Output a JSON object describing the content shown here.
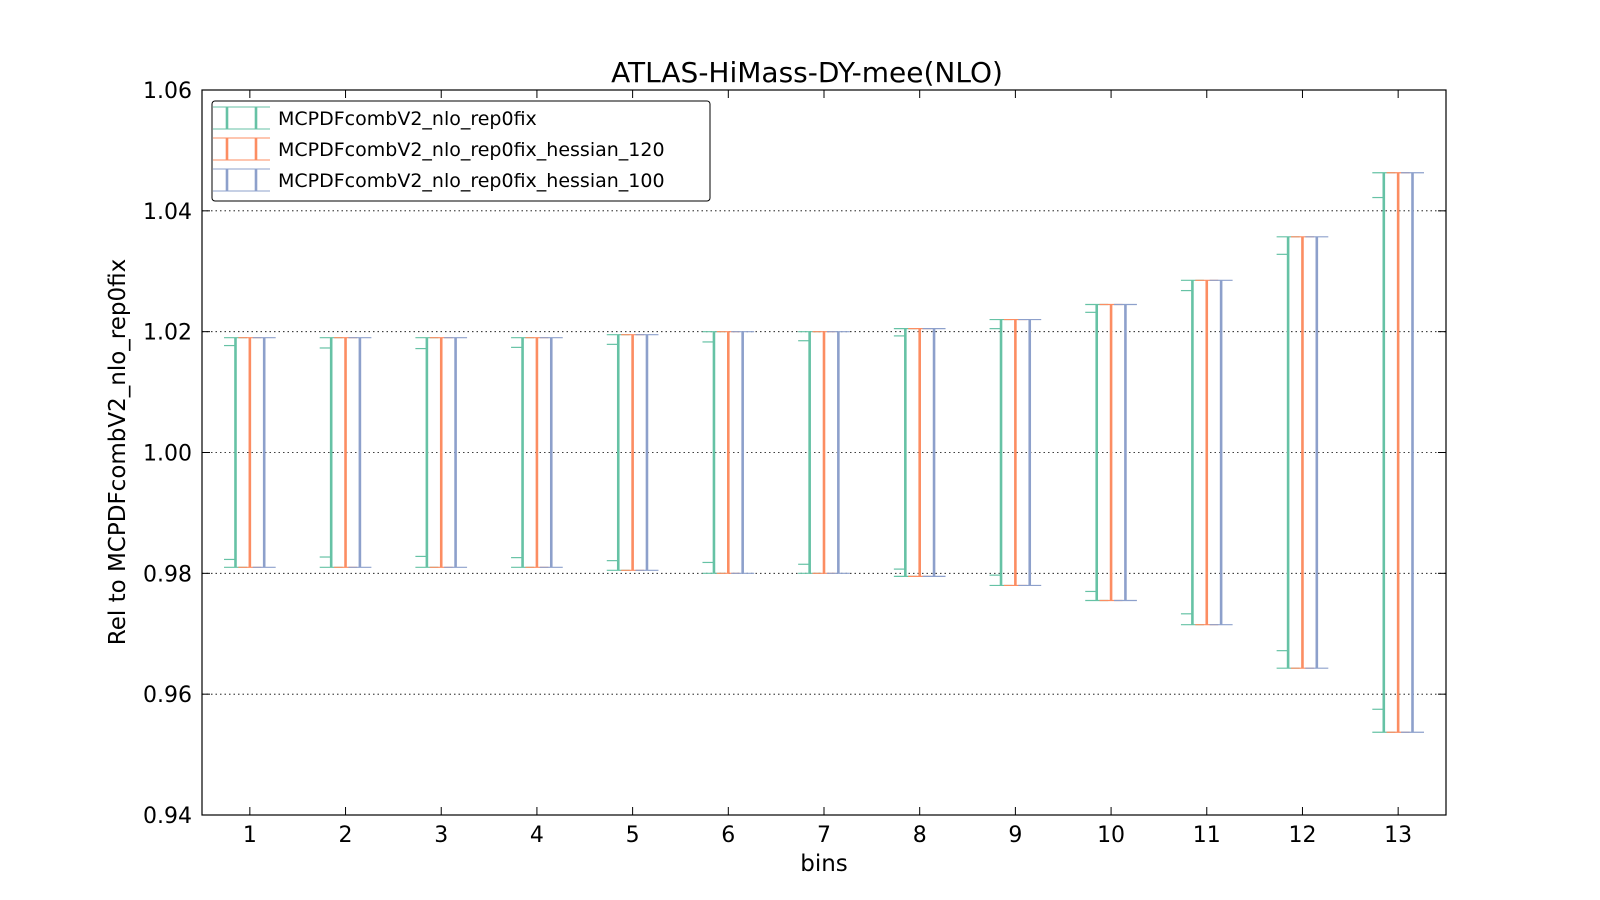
{
  "chart_data": {
    "type": "errorbar",
    "title": "ATLAS-HiMass-DY-mee(NLO)",
    "xlabel": "bins",
    "ylabel": "Rel to MCPDFcombV2_nlo_rep0fix",
    "xlim": [
      0.5,
      13.5
    ],
    "ylim": [
      0.94,
      1.06
    ],
    "yticks": [
      "0.94",
      "0.96",
      "0.98",
      "1.00",
      "1.02",
      "1.04",
      "1.06"
    ],
    "xticks": [
      "1",
      "2",
      "3",
      "4",
      "5",
      "6",
      "7",
      "8",
      "9",
      "10",
      "11",
      "12",
      "13"
    ],
    "grid": "y-dotted",
    "legend_position": "top-left",
    "series": [
      {
        "name": "MCPDFcombV2_nlo_rep0fix",
        "color": "#66c2a5",
        "lower": [
          0.981,
          0.981,
          0.981,
          0.981,
          0.9805,
          0.98,
          0.98,
          0.9795,
          0.978,
          0.9755,
          0.9715,
          0.9643,
          0.9537
        ],
        "upper": [
          1.019,
          1.019,
          1.019,
          1.019,
          1.0195,
          1.02,
          1.02,
          1.0205,
          1.022,
          1.0245,
          1.0285,
          1.0357,
          1.0463
        ],
        "inner_lower": [
          0.9823,
          0.9827,
          0.9828,
          0.9826,
          0.9821,
          0.9818,
          0.9815,
          0.9807,
          0.9797,
          0.977,
          0.9733,
          0.9672,
          0.9575
        ],
        "inner_upper": [
          1.0177,
          1.0173,
          1.0172,
          1.0174,
          1.0179,
          1.0183,
          1.0185,
          1.0193,
          1.0205,
          1.0232,
          1.0268,
          1.0328,
          1.0422
        ]
      },
      {
        "name": "MCPDFcombV2_nlo_rep0fix_hessian_120",
        "color": "#fc8d62",
        "lower": [
          0.981,
          0.981,
          0.981,
          0.981,
          0.9805,
          0.98,
          0.98,
          0.9795,
          0.978,
          0.9755,
          0.9715,
          0.9643,
          0.9537
        ],
        "upper": [
          1.019,
          1.019,
          1.019,
          1.019,
          1.0195,
          1.02,
          1.02,
          1.0205,
          1.022,
          1.0245,
          1.0285,
          1.0357,
          1.0463
        ]
      },
      {
        "name": "MCPDFcombV2_nlo_rep0fix_hessian_100",
        "color": "#8da0cb",
        "lower": [
          0.981,
          0.981,
          0.981,
          0.981,
          0.9805,
          0.98,
          0.98,
          0.9795,
          0.978,
          0.9755,
          0.9715,
          0.9643,
          0.9537
        ],
        "upper": [
          1.019,
          1.019,
          1.019,
          1.019,
          1.0195,
          1.02,
          1.02,
          1.0205,
          1.022,
          1.0245,
          1.0285,
          1.0357,
          1.0463
        ]
      }
    ]
  }
}
